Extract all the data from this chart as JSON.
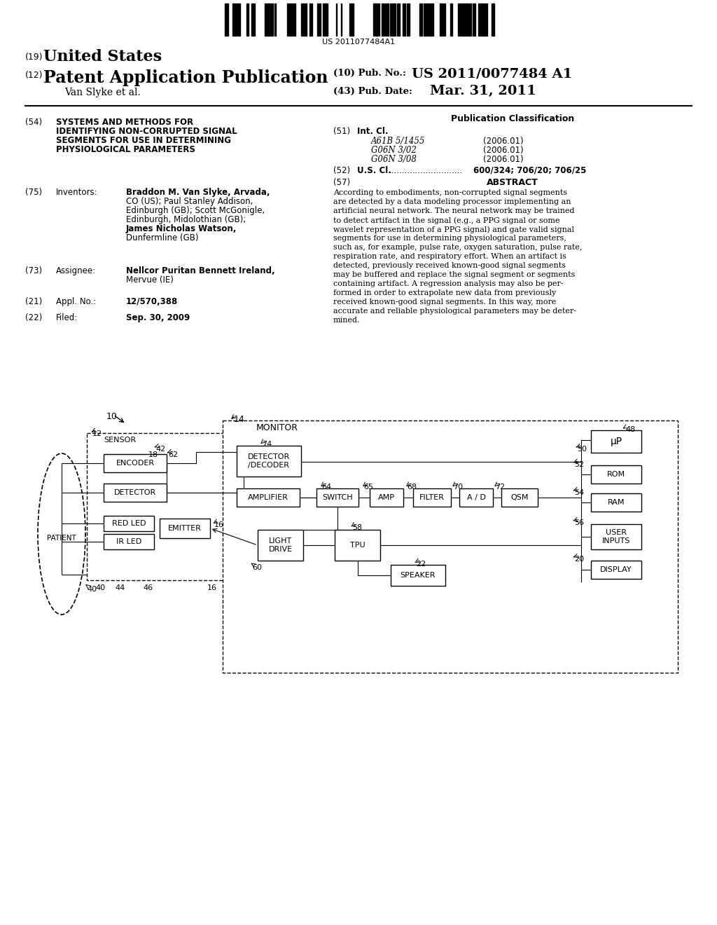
{
  "bg_color": "#ffffff",
  "barcode_text": "US 2011077484A1",
  "header_pub_no": "US 2011/0077484 A1",
  "header_date": "Mar. 31, 2011",
  "title_lines": [
    "SYSTEMS AND METHODS FOR",
    "IDENTIFYING NON-CORRUPTED SIGNAL",
    "SEGMENTS FOR USE IN DETERMINING",
    "PHYSIOLOGICAL PARAMETERS"
  ],
  "int_cl_entries": [
    [
      "A61B 5/1455",
      "(2006.01)"
    ],
    [
      "G06N 3/02",
      "(2006.01)"
    ],
    [
      "G06N 3/08",
      "(2006.01)"
    ]
  ],
  "us_cl_value": "600/324; 706/20; 706/25",
  "abstract_lines": [
    "According to embodiments, non-corrupted signal segments",
    "are detected by a data modeling processor implementing an",
    "artificial neural network. The neural network may be trained",
    "to detect artifact in the signal (e.g., a PPG signal or some",
    "wavelet representation of a PPG signal) and gate valid signal",
    "segments for use in determining physiological parameters,",
    "such as, for example, pulse rate, oxygen saturation, pulse rate,",
    "respiration rate, and respiratory effort. When an artifact is",
    "detected, previously received known-good signal segments",
    "may be buffered and replace the signal segment or segments",
    "containing artifact. A regression analysis may also be per-",
    "formed in order to extrapolate new data from previously",
    "received known-good signal segments. In this way, more",
    "accurate and reliable physiological parameters may be deter-",
    "mined."
  ],
  "inv_segments": [
    [
      [
        "Braddon M. Van Slyke",
        true
      ],
      [
        ", Arvada,",
        false
      ]
    ],
    [
      [
        "CO (US); ",
        false
      ],
      [
        "Paul Stanley Addison",
        true
      ],
      [
        ",",
        false
      ]
    ],
    [
      [
        "Edinburgh (GB); ",
        false
      ],
      [
        "Scott McGonigle",
        true
      ],
      [
        ",",
        false
      ]
    ],
    [
      [
        "Edinburgh, Midolothian (GB);",
        false
      ]
    ],
    [
      [
        "James Nicholas Watson",
        true
      ],
      [
        ",",
        false
      ]
    ],
    [
      [
        "Dunfermline (GB)",
        false
      ]
    ]
  ],
  "assignee_line1_bold": "Nellcor Puritan Bennett Ireland",
  "assignee_line1_rest": ",",
  "assignee_line2": "Mervue (IE)",
  "appl_no_value": "12/570,388",
  "filed_value": "Sep. 30, 2009"
}
